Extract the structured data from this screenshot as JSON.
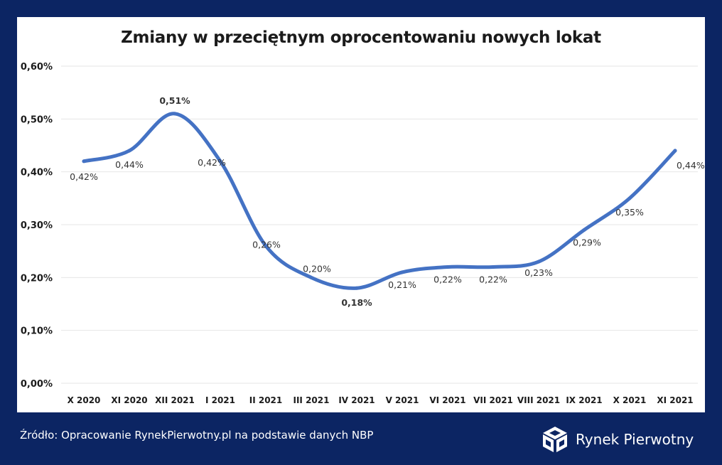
{
  "chart_data": {
    "type": "line",
    "title": "Zmiany w przeciętnym oprocentowaniu nowych lokat",
    "categories": [
      "X 2020",
      "XI 2020",
      "XII 2021",
      "I 2021",
      "II 2021",
      "III 2021",
      "IV 2021",
      "V 2021",
      "VI 2021",
      "VII 2021",
      "VIII 2021",
      "IX 2021",
      "X 2021",
      "XI 2021"
    ],
    "values": [
      0.42,
      0.44,
      0.51,
      0.42,
      0.26,
      0.2,
      0.18,
      0.21,
      0.22,
      0.22,
      0.23,
      0.29,
      0.35,
      0.44
    ],
    "data_labels": [
      "0,42%",
      "0,44%",
      "0,51%",
      "0,42%",
      "0,26%",
      "0,20%",
      "0,18%",
      "0,21%",
      "0,22%",
      "0,22%",
      "0,23%",
      "0,29%",
      "0,35%",
      "0,44%"
    ],
    "max_index": 2,
    "min_index": 6,
    "yticks": [
      "0,00%",
      "0,10%",
      "0,20%",
      "0,30%",
      "0,40%",
      "0,50%",
      "0,60%"
    ],
    "ylim": [
      0,
      0.6
    ],
    "grid": true,
    "xlabel": "",
    "ylabel": ""
  },
  "colors": {
    "background": "#0c2563",
    "line": "#4472c4",
    "max_label": "#1aa84a",
    "min_label": "#e8141c",
    "grid": "#e6e6e6"
  },
  "footer": {
    "source": "Źródło: Opracowanie RynekPierwotny.pl na podstawie danych NBP",
    "brand": "Rynek Pierwotny",
    "brand_icon": "cube-logo-icon"
  }
}
